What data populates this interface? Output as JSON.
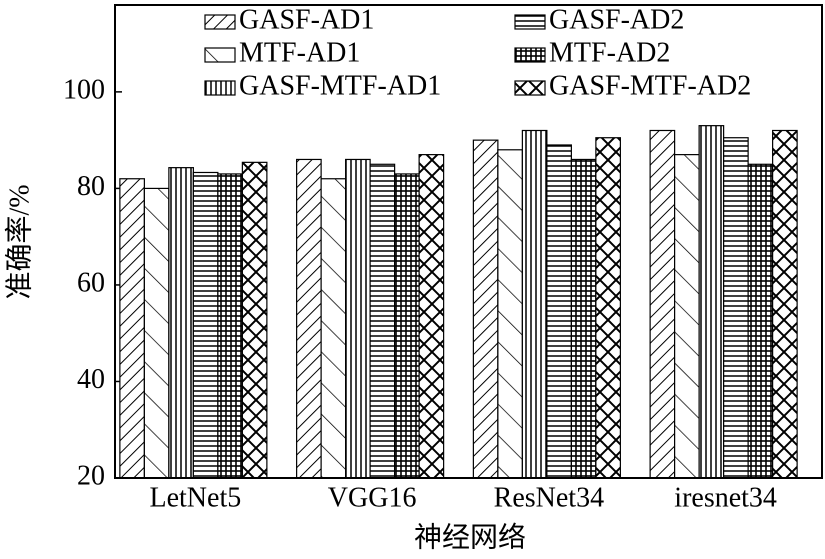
{
  "chart_data": {
    "type": "bar",
    "x_label": "神经网络",
    "y_label": "准确率/%",
    "categories": [
      "LetNet5",
      "VGG16",
      "ResNet34",
      "iresnet34"
    ],
    "series": [
      {
        "name": "GASF-AD1",
        "color": "#000000",
        "hatch": "diag-right",
        "values": [
          82,
          86,
          90,
          92
        ]
      },
      {
        "name": "MTF-AD1",
        "color": "#000000",
        "hatch": "diag-left",
        "values": [
          80,
          82,
          88,
          87
        ]
      },
      {
        "name": "GASF-MTF-AD1",
        "color": "#000000",
        "hatch": "vertical",
        "values": [
          84.3,
          86,
          92,
          93
        ]
      },
      {
        "name": "GASF-AD2",
        "color": "#000000",
        "hatch": "horizontal",
        "values": [
          83.3,
          85,
          89,
          90.5
        ]
      },
      {
        "name": "MTF-AD2",
        "color": "#000000",
        "hatch": "grid",
        "values": [
          83,
          83,
          86,
          85
        ]
      },
      {
        "name": "GASF-MTF-AD2",
        "color": "#000000",
        "hatch": "cross",
        "values": [
          85.4,
          87,
          90.5,
          92
        ]
      }
    ],
    "ylim": [
      20,
      118
    ],
    "yticks": [
      20,
      40,
      60,
      80,
      100
    ],
    "grid": false
  }
}
